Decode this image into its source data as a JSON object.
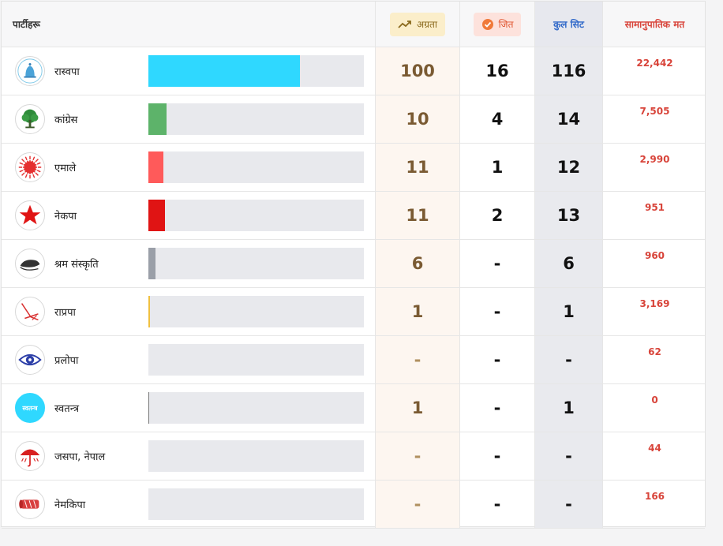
{
  "header": {
    "party": "पार्टीहरू",
    "lead": "अग्रता",
    "won": "जित",
    "total": "कुल सिट",
    "proportional": "सामानुपातिक मत"
  },
  "rows": [
    {
      "name": "रास्वपा",
      "lead": "100",
      "won": "16",
      "total": "116",
      "prop": "22,442",
      "lead_pct": 70.2,
      "color": "#2fd8ff",
      "logo": "bell-logo"
    },
    {
      "name": "कांग्रेस",
      "lead": "10",
      "won": "4",
      "total": "14",
      "prop": "7,505",
      "lead_pct": 8.4,
      "color": "#5db36a",
      "logo": "tree-logo"
    },
    {
      "name": "एमाले",
      "lead": "11",
      "won": "1",
      "total": "12",
      "prop": "2,990",
      "lead_pct": 7.0,
      "color": "#ff5a5a",
      "logo": "sun-logo"
    },
    {
      "name": "नेकपा",
      "lead": "11",
      "won": "2",
      "total": "13",
      "prop": "951",
      "lead_pct": 7.7,
      "color": "#e01414",
      "logo": "star-logo"
    },
    {
      "name": "श्रम संस्कृति",
      "lead": "6",
      "won": "-",
      "total": "6",
      "prop": "960",
      "lead_pct": 3.3,
      "color": "#9a9fa8",
      "logo": "hand-logo"
    },
    {
      "name": "राप्रपा",
      "lead": "1",
      "won": "-",
      "total": "1",
      "prop": "3,169",
      "lead_pct": 0.6,
      "color": "#f0c040",
      "logo": "plough-logo"
    },
    {
      "name": "प्रलोपा",
      "lead": "-",
      "won": "-",
      "total": "-",
      "prop": "62",
      "lead_pct": 0,
      "color": "#2d3fa8",
      "logo": "eye-logo"
    },
    {
      "name": "स्वतन्त्र",
      "lead": "1",
      "won": "-",
      "total": "1",
      "prop": "0",
      "lead_pct": 0.5,
      "color": "#777777",
      "logo": "independent-logo",
      "logo_text": "स्वतन्त्र"
    },
    {
      "name": "जसपा, नेपाल",
      "lead": "-",
      "won": "-",
      "total": "-",
      "prop": "44",
      "lead_pct": 0,
      "color": "#d82020",
      "logo": "umbrella-logo"
    },
    {
      "name": "नेमकिपा",
      "lead": "-",
      "won": "-",
      "total": "-",
      "prop": "166",
      "lead_pct": 0,
      "color": "#d84040",
      "logo": "drum-logo"
    }
  ]
}
